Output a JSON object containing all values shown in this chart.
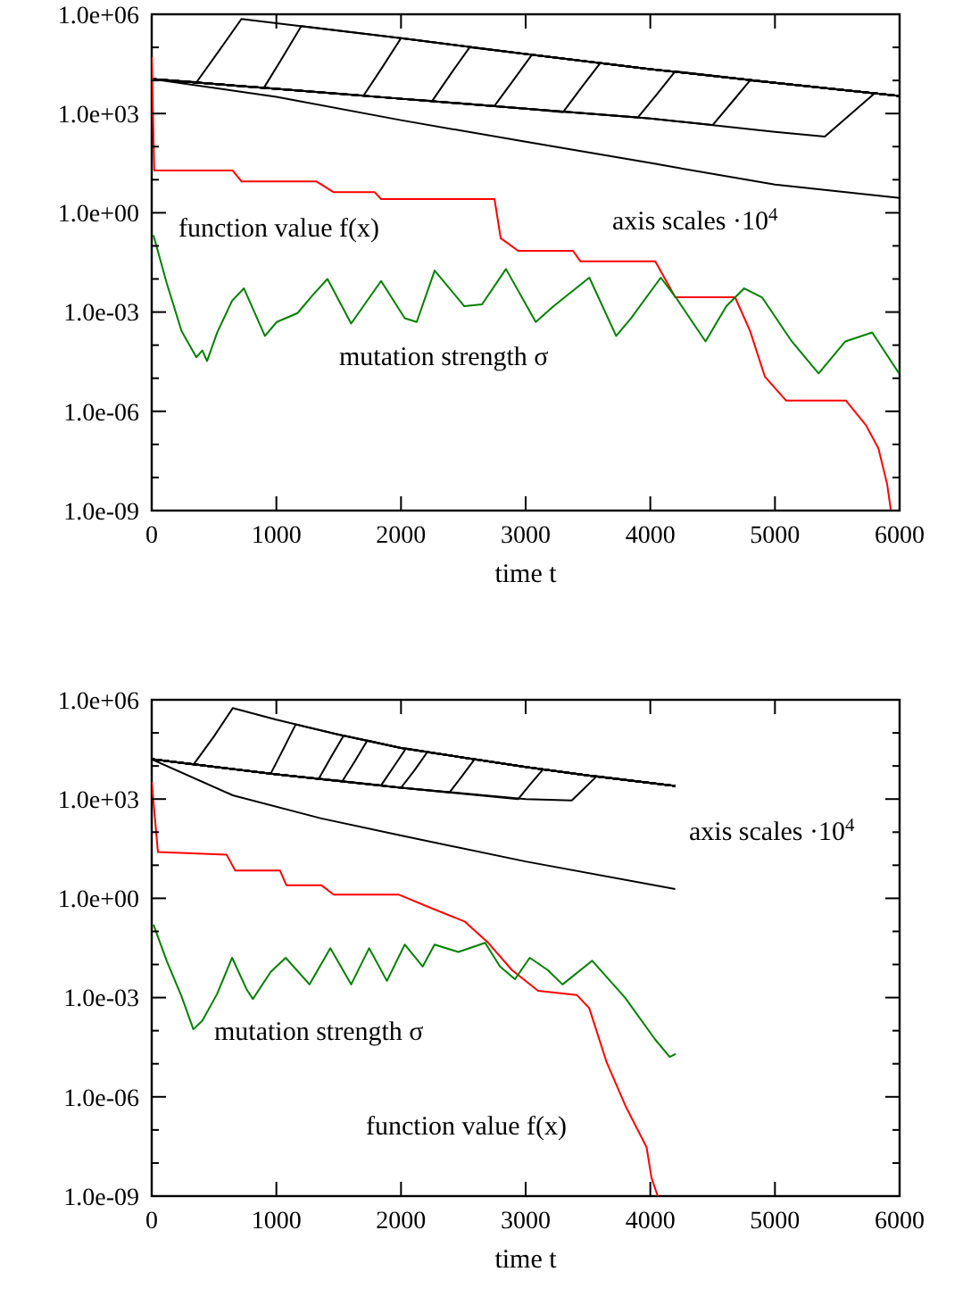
{
  "chart_data": [
    {
      "type": "line",
      "xlabel": "time t",
      "log": "y",
      "xlim": [
        0,
        6000
      ],
      "ylim": [
        1e-09,
        1000000.0
      ],
      "xticks": [
        0,
        1000,
        2000,
        3000,
        4000,
        5000,
        6000
      ],
      "yticks": [
        {
          "value": 1000000.0,
          "label": "1.0e+06"
        },
        {
          "value": 100000.0,
          "label": null
        },
        {
          "value": 10000.0,
          "label": null
        },
        {
          "value": 1000.0,
          "label": "1.0e+03"
        },
        {
          "value": 100,
          "label": null
        },
        {
          "value": 10,
          "label": null
        },
        {
          "value": 1,
          "label": "1.0e+00"
        },
        {
          "value": 0.1,
          "label": null
        },
        {
          "value": 0.01,
          "label": null
        },
        {
          "value": 0.001,
          "label": "1.0e-03"
        },
        {
          "value": 0.0001,
          "label": null
        },
        {
          "value": 1e-05,
          "label": null
        },
        {
          "value": 1e-06,
          "label": "1.0e-06"
        },
        {
          "value": 1e-07,
          "label": null
        },
        {
          "value": 1e-08,
          "label": null
        },
        {
          "value": 1e-09,
          "label": "1.0e-09"
        }
      ],
      "annotations": [
        "function value f(x)",
        "axis scales ·10$^{4}$",
        "mutation strength σ"
      ],
      "series": [
        {
          "color": "#000000",
          "x": [
            0,
            360,
            540,
            720,
            1000,
            2000,
            3000,
            4000,
            5000,
            6000
          ],
          "values": [
            11000.0,
            8900.0,
            79000.0,
            720000.0,
            540000.0,
            190000.0,
            63000.0,
            22000.0,
            8500.0,
            3400.0
          ]
        },
        {
          "color": "#000000",
          "x": [
            0,
            900,
            1050,
            1200,
            2000,
            3000,
            4000,
            5000,
            6000
          ],
          "values": [
            11000.0,
            6000.0,
            50000.0,
            440000.0,
            190000.0,
            63000.0,
            22000.0,
            8500.0,
            3400.0
          ]
        },
        {
          "color": "#000000",
          "x": [
            0,
            1000,
            1700,
            1850,
            2000,
            3000,
            4000,
            5000,
            6000
          ],
          "values": [
            11000.0,
            5600.0,
            3500.0,
            25000.0,
            190000.0,
            63000.0,
            22000.0,
            8500.0,
            3400.0
          ]
        },
        {
          "color": "#000000",
          "x": [
            0,
            1000,
            2000,
            2250,
            2400,
            2550,
            3000,
            4000,
            5000,
            6000
          ],
          "values": [
            11000.0,
            5600.0,
            2800.0,
            2400.0,
            16000.0,
            100000.0,
            63000.0,
            22000.0,
            8500.0,
            3400.0
          ]
        },
        {
          "color": "#000000",
          "x": [
            0,
            1000,
            2000,
            2750,
            2900,
            3050,
            4000,
            5000,
            6000
          ],
          "values": [
            11000.0,
            5600.0,
            2800.0,
            1700.0,
            10000.0,
            60000.0,
            22000.0,
            8500.0,
            3400.0
          ]
        },
        {
          "color": "#000000",
          "x": [
            0,
            1000,
            2000,
            3000,
            3300,
            3450,
            3600,
            4000,
            5000,
            6000
          ],
          "values": [
            11000.0,
            5600.0,
            2800.0,
            1400.0,
            1100.0,
            6300.0,
            34000.0,
            22000.0,
            8500.0,
            3400.0
          ]
        },
        {
          "color": "#000000",
          "x": [
            0,
            1000,
            2000,
            3000,
            3900,
            4050,
            4200,
            5000,
            6000
          ],
          "values": [
            11000.0,
            5600.0,
            2800.0,
            1400.0,
            760.0,
            3700.0,
            19000.0,
            8500.0,
            3400.0
          ]
        },
        {
          "color": "#000000",
          "x": [
            0,
            1000,
            2000,
            3000,
            4000,
            4500,
            4650,
            4800,
            5000,
            6000
          ],
          "values": [
            11000.0,
            5600.0,
            2800.0,
            1400.0,
            710.0,
            450.0,
            2100.0,
            10000.0,
            8500.0,
            3400.0
          ]
        },
        {
          "color": "#000000",
          "x": [
            0,
            1000,
            2000,
            3000,
            4000,
            5000,
            5400,
            5600,
            5800,
            6000
          ],
          "values": [
            11000.0,
            5600.0,
            2800.0,
            1400.0,
            710.0,
            280.0,
            200.0,
            910.0,
            4100.0,
            3400.0
          ]
        },
        {
          "color": "#000000",
          "x": [
            0,
            1000,
            2000,
            3000,
            4000,
            5000,
            6000
          ],
          "values": [
            11000.0,
            3200.0,
            630.0,
            140.0,
            32,
            7.1,
            2.8
          ]
        },
        {
          "color": "#ff0000",
          "x": [
            0,
            20,
            650,
            720,
            1320,
            1460,
            1790,
            1840,
            2750,
            2800,
            2940,
            3380,
            3440,
            4040,
            4200,
            4680,
            4800,
            4920,
            5090,
            5570,
            5730,
            5830,
            5900,
            5930
          ],
          "values": [
            51000.0,
            19,
            19,
            8.9,
            8.9,
            4.2,
            4.2,
            2.6,
            2.6,
            0.17,
            0.071,
            0.071,
            0.034,
            0.034,
            0.0028,
            0.0028,
            0.00027,
            1.1e-05,
            2.1e-06,
            2.1e-06,
            3.8e-07,
            7.6e-08,
            6.3e-09,
            1e-09
          ]
        },
        {
          "color": "#008000",
          "x": [
            14,
            120,
            239,
            358,
            406,
            444,
            525,
            645,
            740,
            908,
            1003,
            1170,
            1290,
            1410,
            1600,
            1840,
            2030,
            2126,
            2270,
            2508,
            2650,
            2842,
            3081,
            3224,
            3511,
            3726,
            3845,
            4084,
            4204,
            4443,
            4610,
            4753,
            4896,
            5135,
            5350,
            5565,
            5780,
            5995
          ],
          "values": [
            0.21,
            0.0076,
            0.00027,
            4.3e-05,
            6.9e-05,
            3.3e-05,
            0.00024,
            0.0022,
            0.0052,
            0.00019,
            0.0005,
            0.00093,
            0.0032,
            0.01,
            0.00045,
            0.0087,
            0.00065,
            0.0005,
            0.018,
            0.0015,
            0.0017,
            0.02,
            0.0005,
            0.0015,
            0.011,
            0.00019,
            0.00065,
            0.011,
            0.0028,
            0.00013,
            0.0015,
            0.0052,
            0.0028,
            0.00013,
            1.4e-05,
            0.00013,
            0.00024,
            1.4e-05
          ]
        }
      ]
    },
    {
      "type": "line",
      "xlabel": "time t",
      "log": "y",
      "xlim": [
        0,
        6000
      ],
      "ylim": [
        1e-09,
        1000000.0
      ],
      "xticks": [
        0,
        1000,
        2000,
        3000,
        4000,
        5000,
        6000
      ],
      "yticks": [
        {
          "value": 1000000.0,
          "label": "1.0e+06"
        },
        {
          "value": 100000.0,
          "label": null
        },
        {
          "value": 10000.0,
          "label": null
        },
        {
          "value": 1000.0,
          "label": "1.0e+03"
        },
        {
          "value": 100,
          "label": null
        },
        {
          "value": 10,
          "label": null
        },
        {
          "value": 1,
          "label": "1.0e+00"
        },
        {
          "value": 0.1,
          "label": null
        },
        {
          "value": 0.01,
          "label": null
        },
        {
          "value": 0.001,
          "label": "1.0e-03"
        },
        {
          "value": 0.0001,
          "label": null
        },
        {
          "value": 1e-05,
          "label": null
        },
        {
          "value": 1e-06,
          "label": "1.0e-06"
        },
        {
          "value": 1e-07,
          "label": null
        },
        {
          "value": 1e-08,
          "label": null
        },
        {
          "value": 1e-09,
          "label": "1.0e-09"
        }
      ],
      "annotations": [
        "axis scales ·10$^{4}$",
        "mutation strength σ",
        "function value f(x)"
      ],
      "series": [
        {
          "color": "#000000",
          "x": [
            0,
            335,
            500,
            650,
            1000,
            1500,
            2000,
            2500,
            3000,
            3500,
            4200
          ],
          "values": [
            16000.0,
            11000.0,
            79000.0,
            560000.0,
            250000.0,
            89000.0,
            35000.0,
            18000.0,
            9300.0,
            5200.0,
            2500.0
          ]
        },
        {
          "color": "#000000",
          "x": [
            0,
            955,
            1055,
            1155,
            1500,
            2000,
            2500,
            3000,
            3500,
            4200
          ],
          "values": [
            16000.0,
            5900.0,
            32000.0,
            180000.0,
            89000.0,
            35000.0,
            18000.0,
            9300.0,
            5200.0,
            2500.0
          ]
        },
        {
          "color": "#000000",
          "x": [
            0,
            1000,
            1340,
            1440,
            1540,
            2000,
            2500,
            3000,
            3500,
            4200
          ],
          "values": [
            16000.0,
            5600.0,
            4100.0,
            19000.0,
            83000.0,
            35000.0,
            18000.0,
            9300.0,
            5200.0,
            2500.0
          ]
        },
        {
          "color": "#000000",
          "x": [
            0,
            1000,
            1530,
            1630,
            1730,
            2000,
            2500,
            3000,
            3500,
            4200
          ],
          "values": [
            16000.0,
            5600.0,
            3500.0,
            14000.0,
            59000.0,
            35000.0,
            18000.0,
            9300.0,
            5200.0,
            2500.0
          ]
        },
        {
          "color": "#000000",
          "x": [
            0,
            1000,
            1840,
            1940,
            2040,
            2500,
            3000,
            3500,
            4200
          ],
          "values": [
            16000.0,
            5600.0,
            2600.0,
            9300.0,
            34000.0,
            18000.0,
            9300.0,
            5200.0,
            2500.0
          ]
        },
        {
          "color": "#000000",
          "x": [
            0,
            1000,
            2000,
            2110,
            2210,
            2500,
            3000,
            3500,
            4200
          ],
          "values": [
            16000.0,
            5600.0,
            2200.0,
            7600.0,
            26000.0,
            18000.0,
            9300.0,
            5200.0,
            2500.0
          ]
        },
        {
          "color": "#000000",
          "x": [
            0,
            1000,
            2000,
            2390,
            2490,
            2590,
            3000,
            3500,
            4200
          ],
          "values": [
            16000.0,
            5600.0,
            2200.0,
            1600.0,
            5000.0,
            16000.0,
            9300.0,
            5200.0,
            2500.0
          ]
        },
        {
          "color": "#000000",
          "x": [
            0,
            1000,
            2000,
            2940,
            3040,
            3140,
            3500,
            4200
          ],
          "values": [
            16000.0,
            5600.0,
            2200.0,
            1000.0,
            2900.0,
            7900.0,
            5200.0,
            2500.0
          ]
        },
        {
          "color": "#000000",
          "x": [
            0,
            1000,
            2000,
            3000,
            3370,
            3470,
            3570,
            4200
          ],
          "values": [
            16000.0,
            5600.0,
            2200.0,
            1000.0,
            910.0,
            2100.0,
            4900.0,
            2500.0
          ]
        },
        {
          "color": "#000000",
          "x": [
            0,
            650,
            1360,
            2000,
            3000,
            4200
          ],
          "values": [
            16000.0,
            1300.0,
            260.0,
            79,
            13,
            1.9
          ]
        },
        {
          "color": "#ff0000",
          "x": [
            0,
            50,
            600,
            670,
            1030,
            1080,
            1360,
            1460,
            1980,
            2220,
            2510,
            2700,
            2890,
            3100,
            3410,
            3510,
            3650,
            3800,
            3970,
            4010,
            4060
          ],
          "values": [
            3200.0,
            25,
            21,
            6.9,
            6.9,
            2.5,
            2.5,
            1.3,
            1.3,
            0.55,
            0.2,
            0.045,
            0.0068,
            0.0016,
            0.0012,
            0.00048,
            1.1e-05,
            5.4e-07,
            3e-08,
            3.5e-09,
            1e-09
          ]
        },
        {
          "color": "#008000",
          "x": [
            14,
            120,
            239,
            334,
            406,
            525,
            645,
            764,
            812,
            955,
            1075,
            1266,
            1433,
            1600,
            1744,
            1887,
            2030,
            2174,
            2269,
            2460,
            2675,
            2794,
            2914,
            3033,
            3177,
            3296,
            3534,
            3797,
            4036,
            4156,
            4204
          ],
          "values": [
            0.16,
            0.013,
            0.0011,
            0.00011,
            0.0002,
            0.0013,
            0.016,
            0.0017,
            0.00091,
            0.006,
            0.016,
            0.0025,
            0.031,
            0.0025,
            0.031,
            0.0032,
            0.04,
            0.0087,
            0.04,
            0.024,
            0.045,
            0.0087,
            0.0036,
            0.016,
            0.0068,
            0.0025,
            0.013,
            0.001,
            5.6e-05,
            1.6e-05,
            2e-05
          ]
        }
      ]
    }
  ]
}
